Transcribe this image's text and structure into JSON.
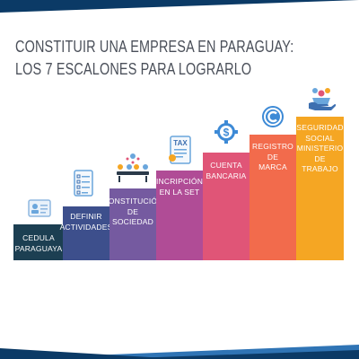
{
  "title": {
    "line1": "CONSTITUIR UNA EMPRESA EN PARAGUAY:",
    "line2": "LOS 7 ESCALONES PARA LOGRARLO"
  },
  "colors": {
    "navy": "#0b3a66",
    "blue": "#2f74b5",
    "title": "#4a4f59"
  },
  "steps": [
    {
      "label": "CEDULA\nPARAGUAYA",
      "icon": "id-card-icon",
      "color": "#1c3f52"
    },
    {
      "label": "DEFINIR\nACTIVIDADES",
      "icon": "checklist-icon",
      "color": "#3d4f8c"
    },
    {
      "label": "CONSTITUCIÓN\nDE\nSOCIEDAD",
      "icon": "team-meeting-icon",
      "color": "#755aa0"
    },
    {
      "label": "INCRIPCIÓN\nEN LA SET",
      "icon": "tax-document-icon",
      "color": "#b04c96"
    },
    {
      "label": "CUENTA\nBANCARIA",
      "icon": "dollar-gear-icon",
      "color": "#e05577"
    },
    {
      "label": "REGISTRO\nDE\nMARCA",
      "icon": "copyright-icon",
      "color": "#f26b4c"
    },
    {
      "label": "SEGURIDAD\nSOCIAL\nMINISTERIO\nDE TRABAJO",
      "icon": "social-security-icon",
      "color": "#f5a623"
    }
  ]
}
